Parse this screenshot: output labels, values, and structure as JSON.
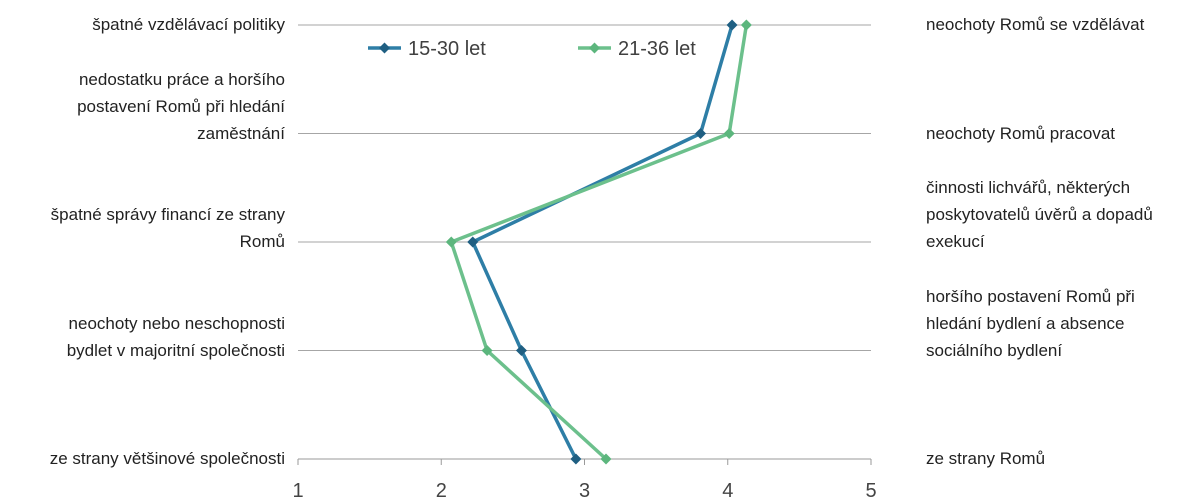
{
  "chart_data": {
    "type": "line",
    "orientation": "horizontal-value-axis",
    "xlim": [
      1,
      5
    ],
    "x_ticks": [
      "1",
      "2",
      "3",
      "4",
      "5"
    ],
    "grid": true,
    "legend_position": "top",
    "left_categories": [
      [
        "špatné vzdělávací politiky"
      ],
      [
        "nedostatku práce a horšího",
        "postavení Romů při hledání",
        "zaměstnání"
      ],
      [
        "špatné správy financí ze strany",
        "Romů"
      ],
      [
        "neochoty nebo neschopnosti",
        "bydlet v majoritní společnosti"
      ],
      [
        "ze strany většinové společnosti"
      ]
    ],
    "right_categories": [
      [
        "neochoty Romů se vzdělávat"
      ],
      [
        "neochoty Romů pracovat"
      ],
      [
        "činnosti lichvářů, některých",
        "poskytovatelů úvěrů a dopadů",
        "exekucí"
      ],
      [
        "horšího postavení Romů při",
        "hledání bydlení a absence",
        "sociálního bydlení"
      ],
      [
        "ze strany Romů"
      ]
    ],
    "series": [
      {
        "name": "15-30 let",
        "color": "#2e7ea6",
        "marker_color": "#1f5f82",
        "values": [
          4.03,
          3.81,
          2.22,
          2.56,
          2.94
        ]
      },
      {
        "name": "21-36 let",
        "color": "#6cc08c",
        "marker_color": "#5cb67d",
        "values": [
          4.13,
          4.01,
          2.07,
          2.32,
          3.15
        ]
      }
    ]
  }
}
